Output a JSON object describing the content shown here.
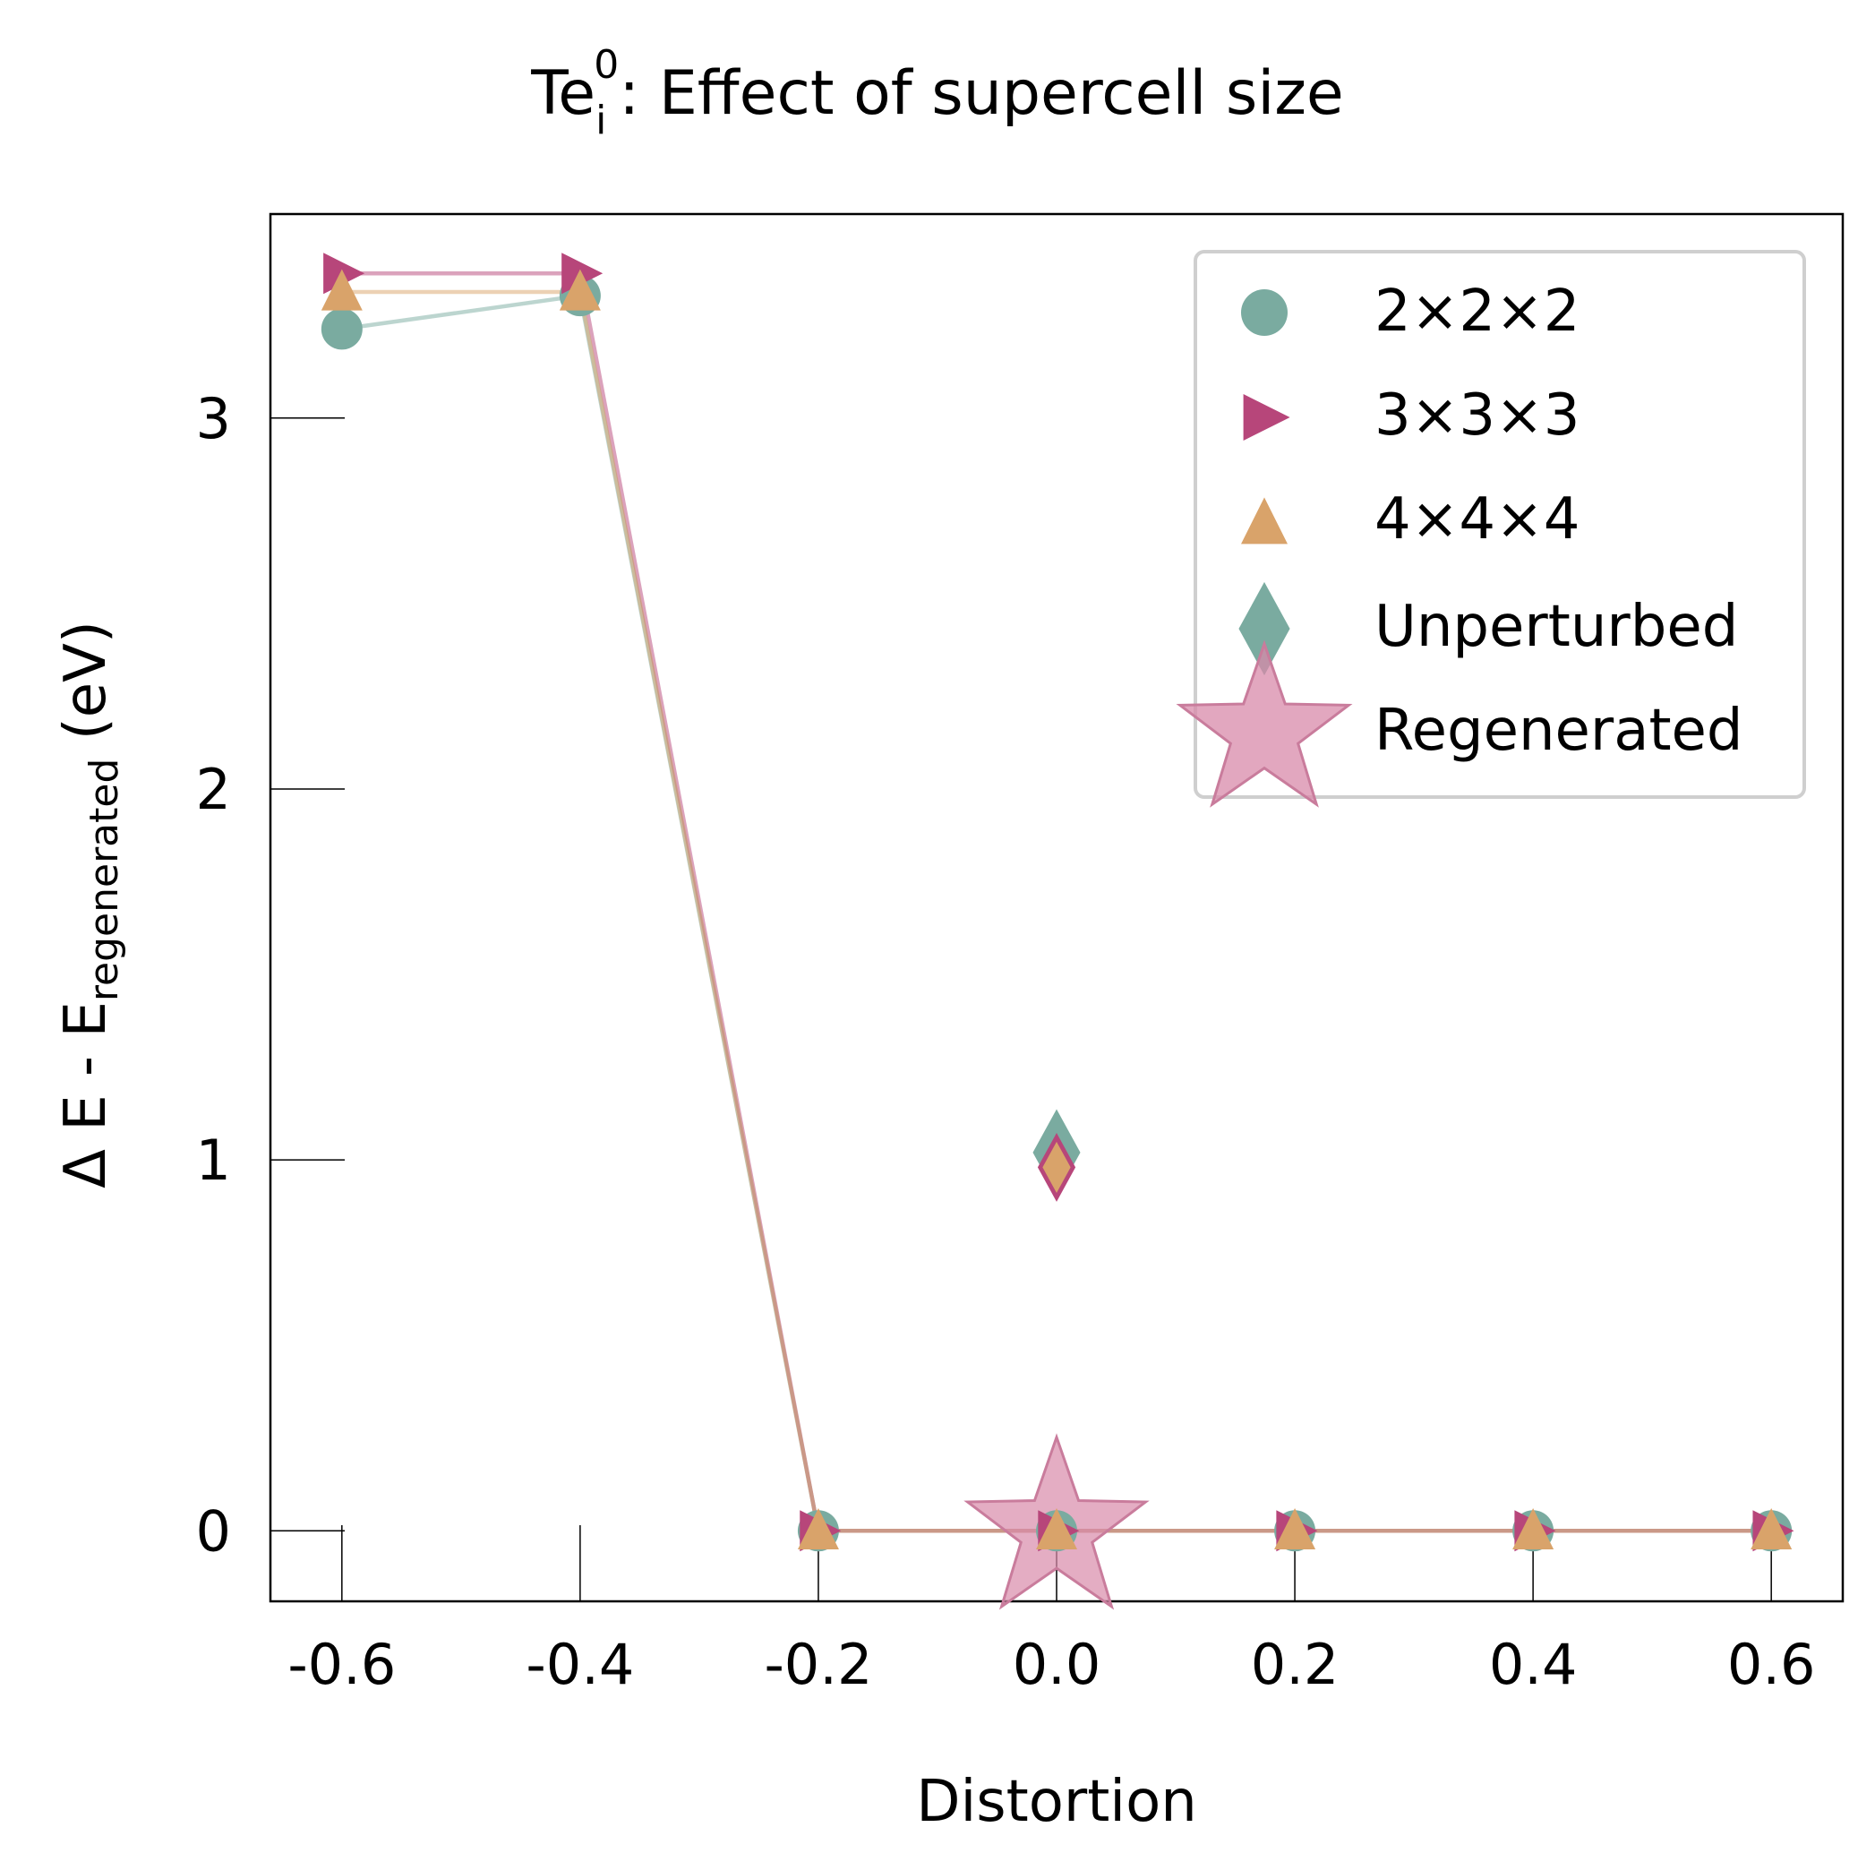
{
  "chart_data": {
    "type": "scatter",
    "title": {
      "base": "Te",
      "sup": "0",
      "sub": "i",
      "rest": ": Effect of supercell size"
    },
    "xlabel": "Distortion",
    "ylabel": {
      "prefix": "Δ E - E",
      "sub": "regenerated",
      "suffix": " (eV)"
    },
    "xlim": [
      -0.66,
      0.66
    ],
    "ylim": [
      -0.19,
      3.55
    ],
    "x_ticks": [
      -0.6,
      -0.4,
      -0.2,
      0.0,
      0.2,
      0.4,
      0.6
    ],
    "x_tick_labels": [
      "-0.6",
      "-0.4",
      "-0.2",
      "0.0",
      "0.2",
      "0.4",
      "0.6"
    ],
    "y_ticks": [
      0,
      1,
      2,
      3
    ],
    "y_tick_labels": [
      "0",
      "1",
      "2",
      "3"
    ],
    "grid": false,
    "legend_position": "top-right",
    "series": [
      {
        "name": "2×2×2",
        "marker": "circle",
        "color": "#7aaba0",
        "x": [
          -0.6,
          -0.4,
          -0.2,
          0.0,
          0.2,
          0.4,
          0.6
        ],
        "y": [
          3.24,
          3.33,
          0.0,
          0.0,
          0.0,
          0.0,
          0.0
        ]
      },
      {
        "name": "3×3×3",
        "marker": "triangle-right",
        "color": "#b7467a",
        "x": [
          -0.6,
          -0.4,
          -0.2,
          0.0,
          0.2,
          0.4,
          0.6
        ],
        "y": [
          3.39,
          3.39,
          0.0,
          0.0,
          0.0,
          0.0,
          0.0
        ]
      },
      {
        "name": "4×4×4",
        "marker": "triangle-up",
        "color": "#d9a36a",
        "x": [
          -0.6,
          -0.4,
          -0.2,
          0.0,
          0.2,
          0.4,
          0.6
        ],
        "y": [
          3.34,
          3.34,
          0.0,
          0.0,
          0.0,
          0.0,
          0.0
        ]
      }
    ],
    "unperturbed": {
      "name": "Unperturbed",
      "marker": "diamond",
      "points": [
        {
          "x": 0.0,
          "y": 1.02,
          "color": "#7aaba0"
        },
        {
          "x": 0.0,
          "y": 0.98,
          "color": "#b7467a"
        },
        {
          "x": 0.0,
          "y": 0.98,
          "color": "#d9a36a"
        }
      ]
    },
    "regenerated": {
      "name": "Regenerated",
      "marker": "star",
      "color": "#d88aa9",
      "point": {
        "x": 0.0,
        "y": 0.0
      }
    }
  }
}
